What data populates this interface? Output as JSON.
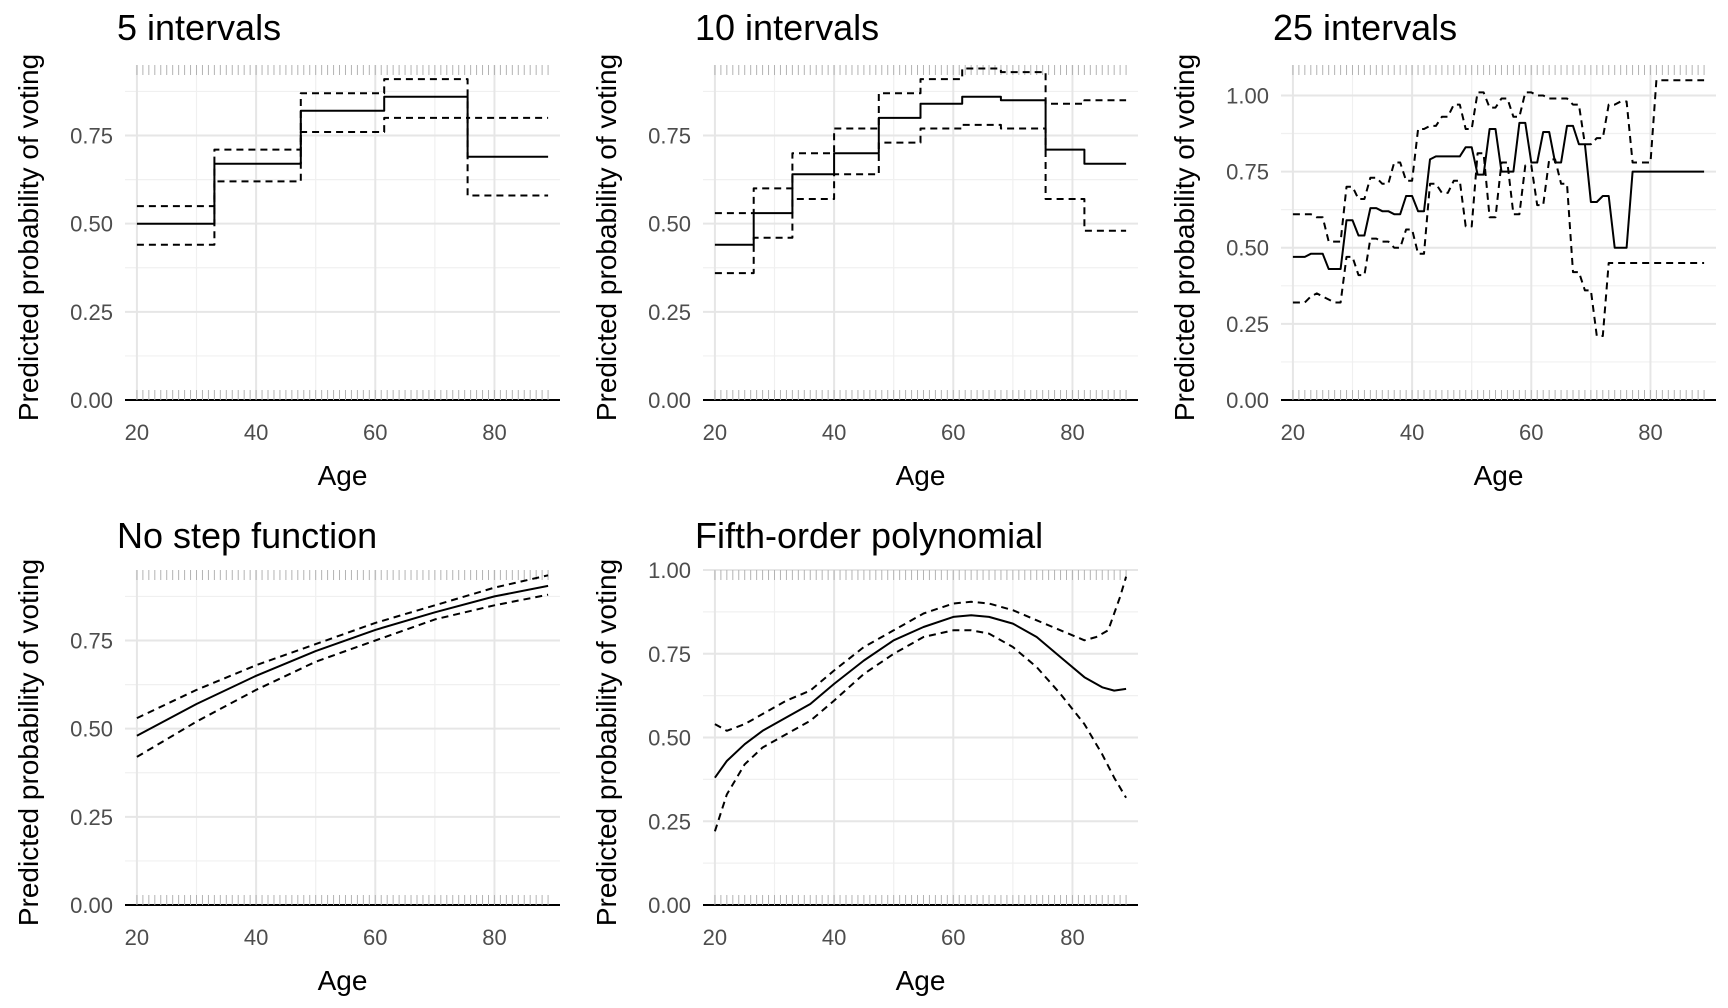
{
  "chart_data": [
    {
      "type": "line",
      "title": "5 intervals",
      "xlabel": "Age",
      "ylabel": "Predicted probability of voting",
      "xlim": [
        18,
        91
      ],
      "ylim": [
        0,
        0.95
      ],
      "x_ticks": [
        "20",
        "40",
        "60",
        "80"
      ],
      "y_ticks": [
        "0.00",
        "0.25",
        "0.50",
        "0.75"
      ],
      "grid": true,
      "series": [
        {
          "role": "estimate",
          "style": "solid",
          "x": [
            20,
            33,
            33,
            47.5,
            47.5,
            61.5,
            61.5,
            75.5,
            75.5,
            89
          ],
          "y": [
            0.5,
            0.5,
            0.67,
            0.67,
            0.82,
            0.82,
            0.86,
            0.86,
            0.69,
            0.69
          ]
        },
        {
          "role": "upper",
          "style": "dashed",
          "x": [
            20,
            33,
            33,
            47.5,
            47.5,
            61.5,
            61.5,
            75.5,
            75.5,
            89
          ],
          "y": [
            0.55,
            0.55,
            0.71,
            0.71,
            0.87,
            0.87,
            0.91,
            0.91,
            0.8,
            0.8
          ]
        },
        {
          "role": "lower",
          "style": "dashed",
          "x": [
            20,
            33,
            33,
            47.5,
            47.5,
            61.5,
            61.5,
            75.5,
            75.5,
            89
          ],
          "y": [
            0.44,
            0.44,
            0.62,
            0.62,
            0.76,
            0.76,
            0.8,
            0.8,
            0.58,
            0.58
          ]
        }
      ]
    },
    {
      "type": "line",
      "title": "10 intervals",
      "xlabel": "Age",
      "ylabel": "Predicted probability of voting",
      "xlim": [
        18,
        91
      ],
      "ylim": [
        0,
        0.95
      ],
      "x_ticks": [
        "20",
        "40",
        "60",
        "80"
      ],
      "y_ticks": [
        "0.00",
        "0.25",
        "0.50",
        "0.75"
      ],
      "grid": true,
      "series": [
        {
          "role": "estimate",
          "style": "solid",
          "x": [
            20,
            26.5,
            26.5,
            33,
            33,
            40,
            40,
            47.5,
            47.5,
            54.5,
            54.5,
            61.5,
            61.5,
            68,
            68,
            75.5,
            75.5,
            82,
            82,
            89
          ],
          "y": [
            0.44,
            0.44,
            0.53,
            0.53,
            0.64,
            0.64,
            0.7,
            0.7,
            0.8,
            0.8,
            0.84,
            0.84,
            0.86,
            0.86,
            0.85,
            0.85,
            0.71,
            0.71,
            0.67,
            0.67
          ]
        },
        {
          "role": "upper",
          "style": "dashed",
          "x": [
            20,
            26.5,
            26.5,
            33,
            33,
            40,
            40,
            47.5,
            47.5,
            54.5,
            54.5,
            61.5,
            61.5,
            68,
            68,
            75.5,
            75.5,
            82,
            82,
            89
          ],
          "y": [
            0.53,
            0.53,
            0.6,
            0.6,
            0.7,
            0.7,
            0.77,
            0.77,
            0.87,
            0.87,
            0.91,
            0.91,
            0.94,
            0.94,
            0.93,
            0.93,
            0.84,
            0.84,
            0.85,
            0.85
          ]
        },
        {
          "role": "lower",
          "style": "dashed",
          "x": [
            20,
            26.5,
            26.5,
            33,
            33,
            40,
            40,
            47.5,
            47.5,
            54.5,
            54.5,
            61.5,
            61.5,
            68,
            68,
            75.5,
            75.5,
            82,
            82,
            89
          ],
          "y": [
            0.36,
            0.36,
            0.46,
            0.46,
            0.57,
            0.57,
            0.64,
            0.64,
            0.73,
            0.73,
            0.77,
            0.77,
            0.78,
            0.78,
            0.77,
            0.77,
            0.57,
            0.57,
            0.48,
            0.48
          ]
        }
      ]
    },
    {
      "type": "line",
      "title": "25 intervals",
      "xlabel": "Age",
      "ylabel": "Predicted probability of voting",
      "xlim": [
        18,
        91
      ],
      "ylim": [
        0,
        1.1
      ],
      "x_ticks": [
        "20",
        "40",
        "60",
        "80"
      ],
      "y_ticks": [
        "0.00",
        "0.25",
        "0.50",
        "0.75",
        "1.00"
      ],
      "grid": true,
      "series": [
        {
          "role": "estimate",
          "style": "solid",
          "x": [
            20,
            22,
            23,
            24,
            25,
            26,
            27,
            28,
            29,
            30,
            31,
            32,
            33,
            34,
            35,
            36,
            37,
            38,
            39,
            40,
            41,
            42,
            43,
            44,
            45,
            46,
            47,
            48,
            49,
            50,
            51,
            52,
            53,
            54,
            55,
            56,
            57,
            58,
            59,
            60,
            61,
            62,
            63,
            64,
            65,
            66,
            67,
            68,
            69,
            70,
            71,
            72,
            73,
            74,
            75,
            76,
            77,
            78,
            79,
            80,
            81,
            82,
            83,
            84,
            85,
            86,
            87,
            88,
            89
          ],
          "y": [
            0.47,
            0.47,
            0.48,
            0.48,
            0.48,
            0.43,
            0.43,
            0.43,
            0.59,
            0.59,
            0.54,
            0.54,
            0.63,
            0.63,
            0.62,
            0.62,
            0.61,
            0.61,
            0.67,
            0.67,
            0.62,
            0.62,
            0.79,
            0.8,
            0.8,
            0.8,
            0.8,
            0.8,
            0.83,
            0.83,
            0.74,
            0.74,
            0.89,
            0.89,
            0.75,
            0.75,
            0.75,
            0.91,
            0.91,
            0.78,
            0.78,
            0.88,
            0.88,
            0.78,
            0.78,
            0.9,
            0.9,
            0.84,
            0.84,
            0.65,
            0.65,
            0.67,
            0.67,
            0.5,
            0.5,
            0.5,
            0.75,
            0.75,
            0.75,
            0.75,
            0.75,
            0.75,
            0.75,
            0.75,
            0.75,
            0.75,
            0.75,
            0.75,
            0.75
          ]
        },
        {
          "role": "upper",
          "style": "dashed",
          "x": [
            20,
            22,
            23,
            24,
            25,
            26,
            27,
            28,
            29,
            30,
            31,
            32,
            33,
            34,
            35,
            36,
            37,
            38,
            39,
            40,
            41,
            42,
            43,
            44,
            45,
            46,
            47,
            48,
            49,
            50,
            51,
            52,
            53,
            54,
            55,
            56,
            57,
            58,
            59,
            60,
            61,
            62,
            63,
            64,
            65,
            66,
            67,
            68,
            69,
            70,
            71,
            72,
            73,
            74,
            75,
            76,
            77,
            78,
            79,
            80,
            81,
            82,
            83,
            84,
            85,
            86,
            87,
            88,
            89
          ],
          "y": [
            0.61,
            0.61,
            0.61,
            0.6,
            0.6,
            0.52,
            0.52,
            0.52,
            0.7,
            0.7,
            0.66,
            0.66,
            0.73,
            0.73,
            0.71,
            0.71,
            0.78,
            0.78,
            0.72,
            0.72,
            0.89,
            0.89,
            0.9,
            0.9,
            0.93,
            0.93,
            0.97,
            0.97,
            0.89,
            0.89,
            1.01,
            1.01,
            0.96,
            0.96,
            0.99,
            0.99,
            0.93,
            0.93,
            1.01,
            1.01,
            1.0,
            1.0,
            0.99,
            0.99,
            0.99,
            0.99,
            0.97,
            0.97,
            0.84,
            0.84,
            0.86,
            0.86,
            0.97,
            0.97,
            0.98,
            0.98,
            0.78,
            0.78,
            0.78,
            0.78,
            1.05,
            1.05,
            1.05,
            1.05,
            1.05,
            1.05,
            1.05,
            1.05,
            1.05
          ]
        },
        {
          "role": "lower",
          "style": "dashed",
          "x": [
            20,
            22,
            23,
            24,
            25,
            26,
            27,
            28,
            29,
            30,
            31,
            32,
            33,
            34,
            35,
            36,
            37,
            38,
            39,
            40,
            41,
            42,
            43,
            44,
            45,
            46,
            47,
            48,
            49,
            50,
            51,
            52,
            53,
            54,
            55,
            56,
            57,
            58,
            59,
            60,
            61,
            62,
            63,
            64,
            65,
            66,
            67,
            68,
            69,
            70,
            71,
            72,
            73,
            74,
            75,
            76,
            77,
            78,
            79,
            80,
            81,
            82,
            83,
            84,
            85,
            86,
            87,
            88,
            89
          ],
          "y": [
            0.32,
            0.32,
            0.34,
            0.35,
            0.34,
            0.33,
            0.32,
            0.32,
            0.47,
            0.47,
            0.41,
            0.41,
            0.53,
            0.53,
            0.52,
            0.52,
            0.5,
            0.5,
            0.56,
            0.56,
            0.48,
            0.48,
            0.71,
            0.71,
            0.68,
            0.68,
            0.72,
            0.72,
            0.57,
            0.57,
            0.81,
            0.81,
            0.6,
            0.6,
            0.78,
            0.78,
            0.61,
            0.61,
            0.77,
            0.77,
            0.64,
            0.64,
            0.79,
            0.79,
            0.71,
            0.71,
            0.42,
            0.42,
            0.36,
            0.36,
            0.21,
            0.21,
            0.45,
            0.45,
            0.45,
            0.45,
            0.45,
            0.45,
            0.45,
            0.45,
            0.45,
            0.45,
            0.45,
            0.45,
            0.45,
            0.45,
            0.45,
            0.45,
            0.45
          ]
        }
      ]
    },
    {
      "type": "line",
      "title": "No step function",
      "xlabel": "Age",
      "ylabel": "Predicted probability of voting",
      "xlim": [
        18,
        91
      ],
      "ylim": [
        0,
        0.95
      ],
      "x_ticks": [
        "20",
        "40",
        "60",
        "80"
      ],
      "y_ticks": [
        "0.00",
        "0.25",
        "0.50",
        "0.75"
      ],
      "grid": true,
      "series": [
        {
          "role": "estimate",
          "style": "solid",
          "x": [
            20,
            30,
            40,
            50,
            60,
            70,
            80,
            89
          ],
          "y": [
            0.48,
            0.57,
            0.65,
            0.72,
            0.78,
            0.83,
            0.875,
            0.905
          ]
        },
        {
          "role": "upper",
          "style": "dashed",
          "x": [
            20,
            30,
            40,
            50,
            60,
            70,
            80,
            89
          ],
          "y": [
            0.53,
            0.61,
            0.68,
            0.74,
            0.8,
            0.85,
            0.9,
            0.935
          ]
        },
        {
          "role": "lower",
          "style": "dashed",
          "x": [
            20,
            30,
            40,
            50,
            60,
            70,
            80,
            89
          ],
          "y": [
            0.42,
            0.52,
            0.61,
            0.69,
            0.75,
            0.81,
            0.85,
            0.88
          ]
        }
      ]
    },
    {
      "type": "line",
      "title": "Fifth-order polynomial",
      "xlabel": "Age",
      "ylabel": "Predicted probability of voting",
      "xlim": [
        18,
        91
      ],
      "ylim": [
        0,
        1.0
      ],
      "x_ticks": [
        "20",
        "40",
        "60",
        "80"
      ],
      "y_ticks": [
        "0.00",
        "0.25",
        "0.50",
        "0.75",
        "1.00"
      ],
      "grid": true,
      "series": [
        {
          "role": "estimate",
          "style": "solid",
          "x": [
            20,
            22,
            25,
            28,
            32,
            36,
            40,
            45,
            50,
            55,
            60,
            63,
            66,
            70,
            74,
            78,
            82,
            85,
            87,
            89
          ],
          "y": [
            0.38,
            0.43,
            0.48,
            0.52,
            0.56,
            0.6,
            0.66,
            0.73,
            0.79,
            0.83,
            0.86,
            0.865,
            0.86,
            0.84,
            0.8,
            0.74,
            0.68,
            0.65,
            0.64,
            0.645
          ]
        },
        {
          "role": "upper",
          "style": "dashed",
          "x": [
            20,
            22,
            25,
            28,
            32,
            36,
            40,
            45,
            50,
            55,
            60,
            63,
            66,
            70,
            74,
            78,
            82,
            84,
            86,
            88,
            89
          ],
          "y": [
            0.54,
            0.52,
            0.54,
            0.57,
            0.61,
            0.64,
            0.7,
            0.77,
            0.82,
            0.87,
            0.9,
            0.905,
            0.9,
            0.88,
            0.85,
            0.82,
            0.79,
            0.8,
            0.82,
            0.92,
            0.98
          ]
        },
        {
          "role": "lower",
          "style": "dashed",
          "x": [
            20,
            22,
            25,
            28,
            32,
            36,
            40,
            45,
            50,
            55,
            60,
            63,
            66,
            70,
            74,
            78,
            82,
            85,
            87,
            89
          ],
          "y": [
            0.22,
            0.33,
            0.42,
            0.47,
            0.51,
            0.55,
            0.61,
            0.69,
            0.75,
            0.8,
            0.82,
            0.82,
            0.81,
            0.77,
            0.71,
            0.63,
            0.54,
            0.45,
            0.38,
            0.32
          ]
        }
      ]
    }
  ]
}
